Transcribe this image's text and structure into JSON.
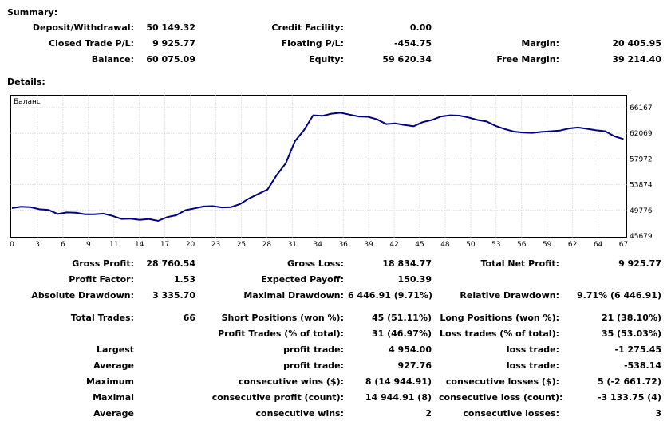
{
  "summary": {
    "title": "Summary:",
    "deposit_withdrawal": {
      "label": "Deposit/Withdrawal:",
      "value": "50 149.32"
    },
    "credit_facility": {
      "label": "Credit Facility:",
      "value": "0.00"
    },
    "closed_trade_pl": {
      "label": "Closed Trade P/L:",
      "value": "9 925.77"
    },
    "floating_pl": {
      "label": "Floating P/L:",
      "value": "-454.75"
    },
    "margin": {
      "label": "Margin:",
      "value": "20 405.95"
    },
    "balance": {
      "label": "Balance:",
      "value": "60 075.09"
    },
    "equity": {
      "label": "Equity:",
      "value": "59 620.34"
    },
    "free_margin": {
      "label": "Free Margin:",
      "value": "39 214.40"
    }
  },
  "details": {
    "title": "Details:"
  },
  "chart_data": {
    "type": "line",
    "legend": "Баланс",
    "x_ticks": [
      "0",
      "3",
      "6",
      "9",
      "11",
      "14",
      "17",
      "20",
      "23",
      "25",
      "28",
      "31",
      "34",
      "36",
      "39",
      "42",
      "45",
      "48",
      "50",
      "53",
      "56",
      "59",
      "62",
      "64",
      "67"
    ],
    "y_ticks": [
      "66167",
      "62069",
      "57972",
      "53874",
      "49776",
      "45679"
    ],
    "ylim": [
      45679,
      66167
    ],
    "xlim": [
      0,
      67
    ],
    "grid": true,
    "line_color": "#000080",
    "series": [
      {
        "x": [
          0,
          1,
          2,
          3,
          4,
          5,
          6,
          7,
          8,
          9,
          10,
          11,
          12,
          13,
          14,
          15,
          16,
          17,
          18,
          19,
          20,
          21,
          22,
          23,
          24,
          25,
          26,
          27,
          28,
          29,
          30,
          31,
          32,
          33,
          34,
          35,
          36,
          37,
          38,
          39,
          40,
          41,
          42,
          43,
          44,
          45,
          46,
          47,
          48,
          49,
          50,
          51,
          52,
          53,
          54,
          55,
          56,
          57,
          58,
          59,
          60,
          61,
          62,
          63,
          64,
          65,
          66,
          67
        ],
        "values": [
          50150,
          50350,
          50300,
          49950,
          49850,
          49200,
          49450,
          49400,
          49150,
          49150,
          49250,
          48900,
          48400,
          48450,
          48250,
          48400,
          48100,
          48700,
          49000,
          49800,
          50100,
          50400,
          50450,
          50250,
          50300,
          50800,
          51700,
          52400,
          53100,
          55400,
          57300,
          60800,
          62600,
          64950,
          64850,
          65200,
          65350,
          65050,
          64750,
          64700,
          64300,
          63550,
          63650,
          63400,
          63200,
          63850,
          64200,
          64750,
          64950,
          64900,
          64600,
          64200,
          63950,
          63250,
          62750,
          62350,
          62200,
          62150,
          62300,
          62400,
          62500,
          62850,
          63000,
          62800,
          62550,
          62400,
          61600,
          61150
        ]
      }
    ]
  },
  "stats": {
    "gross_profit": {
      "label": "Gross Profit:",
      "value": "28 760.54"
    },
    "gross_loss": {
      "label": "Gross Loss:",
      "value": "18 834.77"
    },
    "total_net_profit": {
      "label": "Total Net Profit:",
      "value": "9 925.77"
    },
    "profit_factor": {
      "label": "Profit Factor:",
      "value": "1.53"
    },
    "expected_payoff": {
      "label": "Expected Payoff:",
      "value": "150.39"
    },
    "absolute_drawdown": {
      "label": "Absolute Drawdown:",
      "value": "3 335.70"
    },
    "maximal_drawdown": {
      "label": "Maximal Drawdown:",
      "value": "6 446.91 (9.71%)"
    },
    "relative_drawdown": {
      "label": "Relative Drawdown:",
      "value": "9.71% (6 446.91)"
    },
    "total_trades": {
      "label": "Total Trades:",
      "value": "66"
    },
    "short_positions": {
      "label": "Short Positions (won %):",
      "value": "45 (51.11%)"
    },
    "long_positions": {
      "label": "Long Positions (won %):",
      "value": "21 (38.10%)"
    },
    "profit_trades": {
      "label": "Profit Trades (% of total):",
      "value": "31 (46.97%)"
    },
    "loss_trades": {
      "label": "Loss trades (% of total):",
      "value": "35 (53.03%)"
    },
    "largest": {
      "label": "Largest",
      "profit_label": "profit trade:",
      "profit_value": "4 954.00",
      "loss_label": "loss trade:",
      "loss_value": "-1 275.45"
    },
    "average": {
      "label": "Average",
      "profit_label": "profit trade:",
      "profit_value": "927.76",
      "loss_label": "loss trade:",
      "loss_value": "-538.14"
    },
    "maximum": {
      "label": "Maximum",
      "profit_label": "consecutive wins ($):",
      "profit_value": "8 (14 944.91)",
      "loss_label": "consecutive losses ($):",
      "loss_value": "5 (-2 661.72)"
    },
    "maximal": {
      "label": "Maximal",
      "profit_label": "consecutive profit (count):",
      "profit_value": "14 944.91 (8)",
      "loss_label": "consecutive loss (count):",
      "loss_value": "-3 133.75 (4)"
    },
    "average2": {
      "label": "Average",
      "profit_label": "consecutive wins:",
      "profit_value": "2",
      "loss_label": "consecutive losses:",
      "loss_value": "3"
    }
  }
}
